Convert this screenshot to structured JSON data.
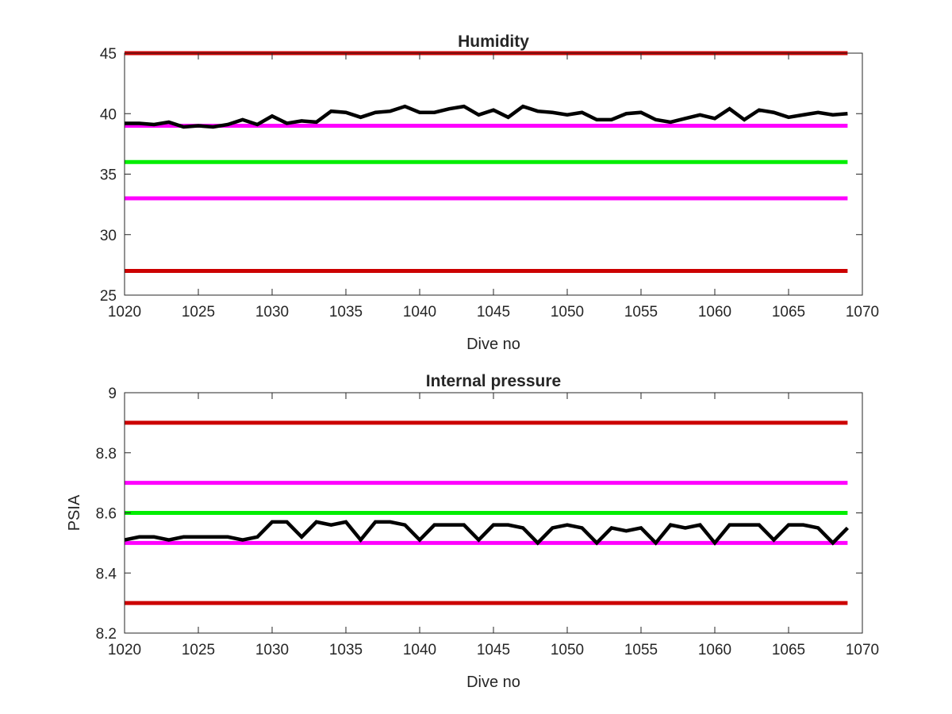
{
  "chart_data": [
    {
      "type": "line",
      "title": "Humidity",
      "xlabel": "Dive no",
      "ylabel": "",
      "xlim": [
        1020,
        1070
      ],
      "ylim": [
        25,
        45
      ],
      "xticks": [
        "1020",
        "1025",
        "1030",
        "1035",
        "1040",
        "1045",
        "1050",
        "1055",
        "1060",
        "1065",
        "1070"
      ],
      "yticks": [
        "25",
        "30",
        "35",
        "40",
        "45"
      ],
      "grid": false,
      "thresholds": [
        {
          "value": 45,
          "color": "#cc0000"
        },
        {
          "value": 39,
          "color": "#ff00ff"
        },
        {
          "value": 36,
          "color": "#00ee00"
        },
        {
          "value": 33,
          "color": "#ff00ff"
        },
        {
          "value": 27,
          "color": "#cc0000"
        }
      ],
      "threshold_x": [
        1020,
        1069
      ],
      "series": [
        {
          "color": "#000000",
          "x": [
            1020,
            1021,
            1022,
            1023,
            1024,
            1025,
            1026,
            1027,
            1028,
            1029,
            1030,
            1031,
            1032,
            1033,
            1034,
            1035,
            1036,
            1037,
            1038,
            1039,
            1040,
            1041,
            1042,
            1043,
            1044,
            1045,
            1046,
            1047,
            1048,
            1049,
            1050,
            1051,
            1052,
            1053,
            1054,
            1055,
            1056,
            1057,
            1058,
            1059,
            1060,
            1061,
            1062,
            1063,
            1064,
            1065,
            1066,
            1067,
            1068,
            1069
          ],
          "values": [
            39.2,
            39.2,
            39.1,
            39.3,
            38.9,
            39.0,
            38.9,
            39.1,
            39.5,
            39.1,
            39.8,
            39.2,
            39.4,
            39.3,
            40.2,
            40.1,
            39.7,
            40.1,
            40.2,
            40.6,
            40.1,
            40.1,
            40.4,
            40.6,
            39.9,
            40.3,
            39.7,
            40.6,
            40.2,
            40.1,
            39.9,
            40.1,
            39.5,
            39.5,
            40.0,
            40.1,
            39.5,
            39.3,
            39.6,
            39.9,
            39.6,
            40.4,
            39.5,
            40.3,
            40.1,
            39.7,
            39.9,
            40.1,
            39.9,
            40.0
          ]
        }
      ]
    },
    {
      "type": "line",
      "title": "Internal pressure",
      "xlabel": "Dive no",
      "ylabel": "PSIA",
      "xlim": [
        1020,
        1070
      ],
      "ylim": [
        8.2,
        9.0
      ],
      "xticks": [
        "1020",
        "1025",
        "1030",
        "1035",
        "1040",
        "1045",
        "1050",
        "1055",
        "1060",
        "1065",
        "1070"
      ],
      "yticks": [
        "8.2",
        "8.4",
        "8.6",
        "8.8",
        "9"
      ],
      "grid": false,
      "thresholds": [
        {
          "value": 8.9,
          "color": "#cc0000"
        },
        {
          "value": 8.7,
          "color": "#ff00ff"
        },
        {
          "value": 8.6,
          "color": "#00ee00"
        },
        {
          "value": 8.5,
          "color": "#ff00ff"
        },
        {
          "value": 8.3,
          "color": "#cc0000"
        }
      ],
      "threshold_x": [
        1020,
        1069
      ],
      "series": [
        {
          "color": "#000000",
          "x": [
            1020,
            1021,
            1022,
            1023,
            1024,
            1025,
            1026,
            1027,
            1028,
            1029,
            1030,
            1031,
            1032,
            1033,
            1034,
            1035,
            1036,
            1037,
            1038,
            1039,
            1040,
            1041,
            1042,
            1043,
            1044,
            1045,
            1046,
            1047,
            1048,
            1049,
            1050,
            1051,
            1052,
            1053,
            1054,
            1055,
            1056,
            1057,
            1058,
            1059,
            1060,
            1061,
            1062,
            1063,
            1064,
            1065,
            1066,
            1067,
            1068,
            1069
          ],
          "values": [
            8.51,
            8.52,
            8.52,
            8.51,
            8.52,
            8.52,
            8.52,
            8.52,
            8.51,
            8.52,
            8.57,
            8.57,
            8.52,
            8.57,
            8.56,
            8.57,
            8.51,
            8.57,
            8.57,
            8.56,
            8.51,
            8.56,
            8.56,
            8.56,
            8.51,
            8.56,
            8.56,
            8.55,
            8.5,
            8.55,
            8.56,
            8.55,
            8.5,
            8.55,
            8.54,
            8.55,
            8.5,
            8.56,
            8.55,
            8.56,
            8.5,
            8.56,
            8.56,
            8.56,
            8.51,
            8.56,
            8.56,
            8.55,
            8.5,
            8.55
          ]
        }
      ]
    }
  ]
}
